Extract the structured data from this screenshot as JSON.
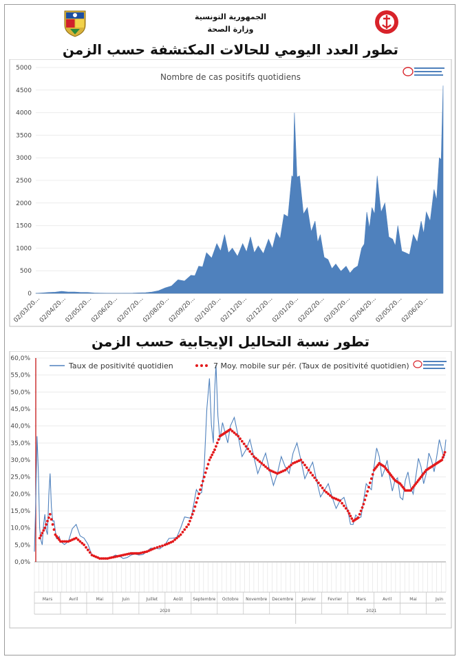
{
  "header": {
    "country": "الجمهورية التونسية",
    "ministry": "وزارة الصحة"
  },
  "colors": {
    "area": "#4f81bd",
    "line": "#4f81bd",
    "moving_average": "#e31a1c",
    "marker": "#c00000"
  },
  "chart_data": [
    {
      "type": "area",
      "heading": "تطور العدد اليومي للحالات المكتشفة حسب الزمن",
      "title": "Nombre de cas positifs quotidiens",
      "xlabel": "",
      "ylabel": "",
      "ylim": [
        0,
        5000
      ],
      "yticks": [
        "0",
        "500",
        "1000",
        "1500",
        "2000",
        "2500",
        "3000",
        "3500",
        "4000",
        "4500",
        "5000"
      ],
      "xticks": [
        "02/03/20...",
        "02/04/20...",
        "02/05/20...",
        "02/06/20...",
        "02/07/20...",
        "02/08/20...",
        "02/09/20...",
        "02/10/20...",
        "02/11/20...",
        "02/12/20...",
        "02/01/20...",
        "02/02/20...",
        "02/03/20...",
        "02/04/20...",
        "02/05/20...",
        "02/06/20..."
      ],
      "series": [
        {
          "x_month_index": [
            0,
            0.5,
            1,
            1.5,
            2,
            2.5,
            3,
            3.5,
            4,
            4.5,
            5,
            5.5,
            6,
            6.3,
            6.6,
            7,
            7.3,
            7.6,
            8,
            8.3,
            8.6,
            9,
            9.3,
            9.6,
            9.9,
            10,
            10.2,
            10.5,
            10.8,
            11,
            11.3,
            11.6,
            12,
            12.3,
            12.6,
            12.8,
            13,
            13.2,
            13.5,
            13.8,
            14,
            14.3,
            14.6,
            14.9,
            15.1,
            15.4,
            15.6,
            15.75
          ],
          "values": [
            2,
            20,
            45,
            30,
            20,
            5,
            2,
            3,
            10,
            30,
            120,
            300,
            400,
            600,
            900,
            1100,
            1300,
            1000,
            1100,
            1250,
            1050,
            1200,
            1350,
            1750,
            2600,
            4000,
            2600,
            1900,
            1600,
            1300,
            750,
            650,
            600,
            550,
            1000,
            1800,
            1900,
            2600,
            2000,
            1200,
            1500,
            900,
            1300,
            1600,
            1800,
            2300,
            3000,
            4600
          ]
        }
      ]
    },
    {
      "type": "line",
      "heading": "تطور نسبة التحاليل الإيجابية حسب الزمن",
      "title": "",
      "xlabel": "",
      "ylabel": "",
      "ylim": [
        0,
        60
      ],
      "yticks": [
        "0,0%",
        "5,0%",
        "10,0%",
        "15,0%",
        "20,0%",
        "25,0%",
        "30,0%",
        "35,0%",
        "40,0%",
        "45,0%",
        "50,0%",
        "55,0%",
        "60,0%"
      ],
      "legend_position": "top",
      "months": [
        "Mars",
        "Avril",
        "Mai",
        "Juin",
        "Juillet",
        "Août",
        "Septembre",
        "Octobre",
        "Novembre",
        "Decembre",
        "Janvier",
        "Fevrier",
        "Mars",
        "Avril",
        "Mai",
        "Juin"
      ],
      "years": [
        "2020",
        "2021"
      ],
      "series": [
        {
          "name": "Taux de positivité quotidien",
          "x_month_index": [
            0,
            0.1,
            0.2,
            0.3,
            0.4,
            0.5,
            0.6,
            0.7,
            0.8,
            0.9,
            1,
            1.3,
            1.6,
            1.9,
            2.2,
            2.5,
            2.8,
            3.1,
            3.4,
            3.7,
            4,
            4.3,
            4.6,
            5,
            5.3,
            5.6,
            5.9,
            6.1,
            6.3,
            6.5,
            6.7,
            6.85,
            6.95,
            7.1,
            7.3,
            7.5,
            7.8,
            8.1,
            8.4,
            8.7,
            9,
            9.3,
            9.6,
            9.9,
            10.2,
            10.5,
            10.8,
            11.1,
            11.4,
            11.7,
            12,
            12.2,
            12.4,
            12.6,
            12.8,
            13,
            13.2,
            13.4,
            13.6,
            13.8,
            14,
            14.2,
            14.4,
            14.6,
            14.8,
            15,
            15.2,
            15.4,
            15.6,
            15.75
          ],
          "values": [
            3,
            37,
            10,
            5,
            14,
            8,
            26,
            12,
            9,
            7,
            6,
            6,
            11,
            7,
            2,
            1,
            1,
            2,
            1,
            2,
            2,
            3,
            4,
            5,
            7,
            10,
            13,
            17,
            20,
            28,
            54,
            35,
            58,
            36,
            38,
            40,
            37,
            33,
            31,
            29,
            27,
            26,
            28,
            32,
            30,
            27,
            24,
            21,
            19,
            18,
            15,
            11,
            13,
            18,
            22,
            28,
            31,
            27,
            25,
            24,
            19,
            24,
            22,
            25,
            28,
            26,
            30,
            31,
            33,
            36
          ]
        },
        {
          "name": "7 Moy. mobile sur pér. (Taux de positivité quotidien)",
          "x_month_index": [
            0.2,
            0.4,
            0.6,
            0.8,
            1,
            1.3,
            1.6,
            1.9,
            2.2,
            2.5,
            2.8,
            3.1,
            3.4,
            3.7,
            4,
            4.3,
            4.6,
            5,
            5.3,
            5.6,
            5.9,
            6.1,
            6.3,
            6.5,
            6.7,
            6.9,
            7.1,
            7.3,
            7.5,
            7.8,
            8.1,
            8.4,
            8.7,
            9,
            9.3,
            9.6,
            9.9,
            10.2,
            10.5,
            10.8,
            11.1,
            11.4,
            11.7,
            12,
            12.2,
            12.4,
            12.6,
            12.8,
            13,
            13.2,
            13.4,
            13.6,
            13.8,
            14,
            14.2,
            14.4,
            14.6,
            14.8,
            15,
            15.2,
            15.4,
            15.6,
            15.75
          ],
          "values": [
            7,
            10,
            14,
            8,
            6,
            6,
            7,
            5,
            2,
            1,
            1,
            1.5,
            2,
            2.5,
            2.5,
            3,
            4,
            5,
            6,
            8,
            11,
            15,
            20,
            25,
            30,
            33,
            37,
            38,
            39,
            37,
            34,
            31,
            29,
            27,
            26,
            27,
            29,
            30,
            27,
            24,
            21,
            19,
            18,
            15,
            12,
            13,
            17,
            22,
            27,
            29,
            28,
            26,
            24,
            23,
            21,
            21,
            23,
            25,
            27,
            28,
            29,
            30,
            33
          ]
        }
      ]
    }
  ]
}
